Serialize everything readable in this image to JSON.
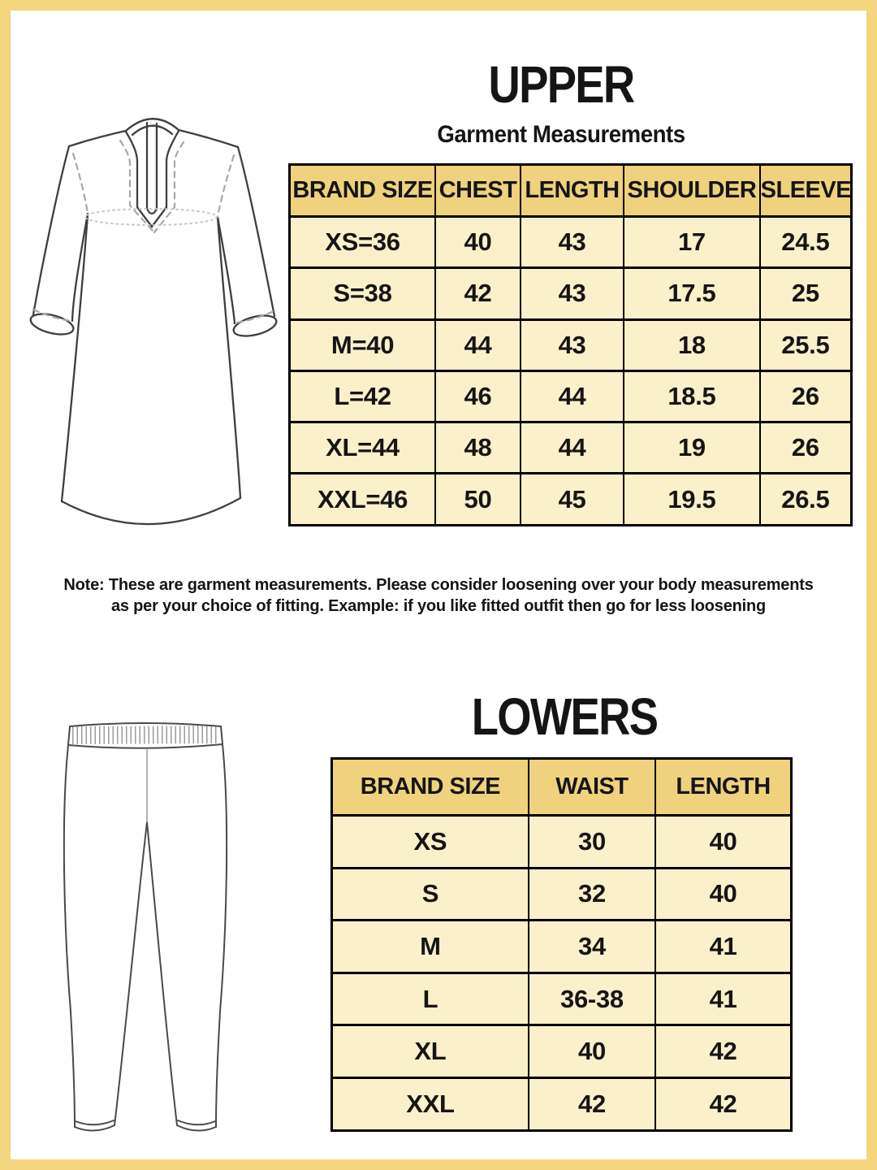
{
  "upper": {
    "title": "UPPER",
    "subtitle": "Garment Measurements",
    "table": {
      "headers": [
        "BRAND SIZE",
        "CHEST",
        "LENGTH",
        "SHOULDER",
        "SLEEVE"
      ],
      "rows": [
        [
          "XS=36",
          "40",
          "43",
          "17",
          "24.5"
        ],
        [
          "S=38",
          "42",
          "43",
          "17.5",
          "25"
        ],
        [
          "M=40",
          "44",
          "43",
          "18",
          "25.5"
        ],
        [
          "L=42",
          "46",
          "44",
          "18.5",
          "26"
        ],
        [
          "XL=44",
          "48",
          "44",
          "19",
          "26"
        ],
        [
          "XXL=46",
          "50",
          "45",
          "19.5",
          "26.5"
        ]
      ]
    }
  },
  "note": {
    "line1": "Note: These are garment measurements. Please consider loosening over your body measurements",
    "line2": "as per your choice of fitting. Example: if you like fitted outfit then go for less loosening"
  },
  "lowers": {
    "title": "LOWERS",
    "table": {
      "headers": [
        "BRAND SIZE",
        "WAIST",
        "LENGTH"
      ],
      "rows": [
        [
          "XS",
          "30",
          "40"
        ],
        [
          "S",
          "32",
          "40"
        ],
        [
          "M",
          "34",
          "41"
        ],
        [
          "L",
          "36-38",
          "41"
        ],
        [
          "XL",
          "40",
          "42"
        ],
        [
          "XXL",
          "42",
          "42"
        ]
      ]
    }
  },
  "illustrations": {
    "upper": "kurta-front-line-drawing",
    "lowers": "leggings-pants-line-drawing"
  },
  "colors": {
    "frame": "#f3d57e",
    "header_bg": "#f0d17d",
    "cell_bg": "#faf0ca",
    "line": "#000000",
    "text": "#151515",
    "sketch": "#3f3f3f",
    "sketch_dash": "#a8a8a8",
    "sketch_dot": "#c8c8c8"
  }
}
